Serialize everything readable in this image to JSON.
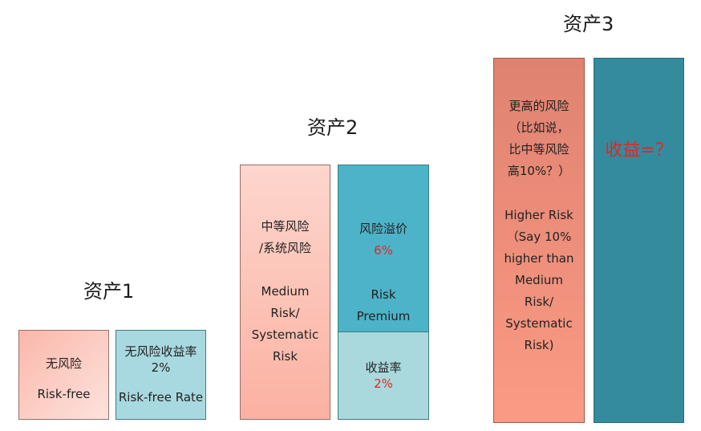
{
  "asset1": {
    "title": "资产1",
    "risk_cn": "无风险",
    "risk_en": "Risk-free",
    "rate_cn": "无风险收益率",
    "rate_value": "2%",
    "rate_en": "Risk-free Rate"
  },
  "asset2": {
    "title": "资产2",
    "risk_cn_1": "中等风险",
    "risk_cn_2": "/系统风险",
    "risk_en_1": "Medium",
    "risk_en_2": "Risk/",
    "risk_en_3": "Systematic",
    "risk_en_4": "Risk",
    "premium_cn": "风险溢价",
    "premium_value": "6%",
    "premium_en_1": "Risk",
    "premium_en_2": "Premium",
    "return_cn": "收益率",
    "return_value": "2%"
  },
  "asset3": {
    "title": "资产3",
    "risk_cn_1": "更高的风险",
    "risk_cn_2": "（比如说，",
    "risk_cn_3": "比中等风险",
    "risk_cn_4": "高10%？）",
    "risk_en_1": "Higher Risk",
    "risk_en_2": "（Say 10%",
    "risk_en_3": "higher than",
    "risk_en_4": "Medium",
    "risk_en_5": "Risk/",
    "risk_en_6": "Systematic",
    "risk_en_7": "Risk)",
    "return_question": "收益=？"
  },
  "colors": {
    "highlight_red": "#e1281e",
    "teal": "#4db3c8",
    "dark_teal": "#348b9e",
    "salmon": "#fb9b85",
    "light_teal": "#a9d9e0"
  }
}
